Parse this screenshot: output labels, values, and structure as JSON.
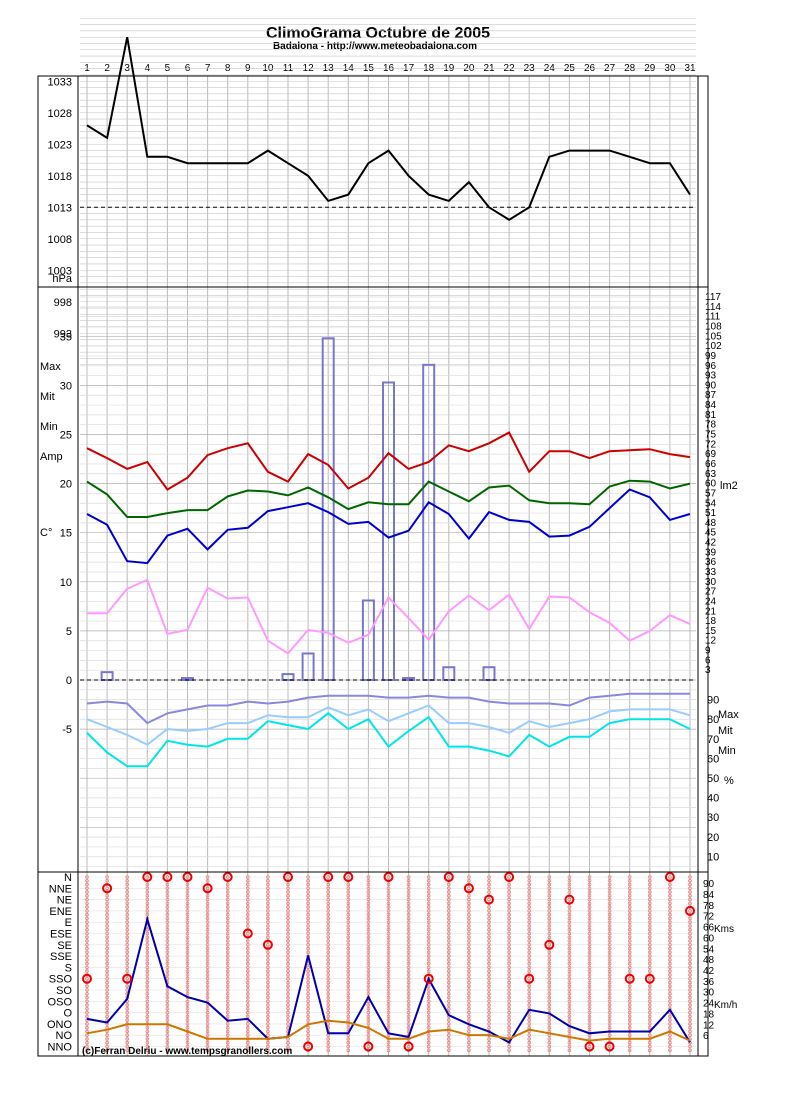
{
  "title": "ClimoGrama Octubre de 2005",
  "subtitle": "Badalona - http://www.meteobadalona.com",
  "credit": "(c)Ferran Delriu - www.tempsgranollers.com",
  "days": [
    1,
    2,
    3,
    4,
    5,
    6,
    7,
    8,
    9,
    10,
    11,
    12,
    13,
    14,
    15,
    16,
    17,
    18,
    19,
    20,
    21,
    22,
    23,
    24,
    25,
    26,
    27,
    28,
    29,
    30,
    31
  ],
  "chart_data": [
    {
      "type": "line",
      "panel": "pressure",
      "ylabel": "hPa",
      "ylim": [
        988,
        1043
      ],
      "yticks": [
        993,
        998,
        1003,
        1008,
        1013,
        1018,
        1023,
        1028,
        1033
      ],
      "reference": 1013,
      "series": [
        {
          "name": "",
          "color": "#000000",
          "values": [
            1026,
            1024,
            1040,
            1021,
            1021,
            1020,
            1020,
            1020,
            1020,
            1022,
            1020,
            1018,
            1014,
            1015,
            1020,
            1022,
            1018,
            1015,
            1014,
            1017,
            1013,
            1011,
            1013,
            1021,
            1022,
            1022,
            1022,
            1021,
            1020,
            1020,
            1015
          ]
        }
      ]
    },
    {
      "type": "line",
      "panel": "temperature",
      "ylabel": "C°",
      "ylim": [
        -10,
        40
      ],
      "yticks": [
        -5,
        0,
        5,
        10,
        15,
        20,
        25,
        30,
        35
      ],
      "y2label": "lm2",
      "y2ticks": [
        3,
        6,
        9,
        12,
        15,
        18,
        21,
        24,
        27,
        30,
        33,
        36,
        39,
        42,
        45,
        48,
        51,
        54,
        57,
        60,
        63,
        66,
        69,
        72,
        75,
        78,
        81,
        84,
        87,
        90,
        93,
        96,
        99,
        102,
        105,
        108,
        111,
        114,
        117
      ],
      "legend": [
        "Max",
        "Mit",
        "Min",
        "Amp"
      ],
      "series": [
        {
          "name": "Max",
          "color": "#cc0000",
          "values": [
            23.6,
            22.6,
            21.5,
            22.2,
            19.4,
            20.6,
            22.9,
            23.6,
            24.1,
            21.2,
            20.2,
            23.0,
            21.9,
            19.5,
            20.6,
            23.1,
            21.5,
            22.2,
            23.9,
            23.3,
            24.1,
            25.2,
            21.2,
            23.3,
            23.3,
            22.6,
            23.3,
            23.4,
            23.5,
            23.0,
            22.7
          ]
        },
        {
          "name": "Mit",
          "color": "#006600",
          "values": [
            20.2,
            18.9,
            16.6,
            16.6,
            17.0,
            17.3,
            17.3,
            18.7,
            19.3,
            19.2,
            18.8,
            19.6,
            18.6,
            17.4,
            18.1,
            17.9,
            17.9,
            20.2,
            19.2,
            18.2,
            19.6,
            19.8,
            18.3,
            18.0,
            18.0,
            17.9,
            19.7,
            20.3,
            20.2,
            19.5,
            20.0
          ]
        },
        {
          "name": "Min",
          "color": "#0000cc",
          "values": [
            16.9,
            15.8,
            12.1,
            11.9,
            14.7,
            15.4,
            13.3,
            15.3,
            15.5,
            17.2,
            17.6,
            18.0,
            17.1,
            15.9,
            16.1,
            14.5,
            15.2,
            18.1,
            16.9,
            14.4,
            17.1,
            16.3,
            16.1,
            14.6,
            14.7,
            15.6,
            17.5,
            19.4,
            18.6,
            16.3,
            16.9
          ]
        },
        {
          "name": "Amp",
          "color": "#ff99ff",
          "values": [
            6.8,
            6.8,
            9.3,
            10.2,
            4.7,
            5.1,
            9.4,
            8.3,
            8.4,
            4.0,
            2.7,
            5.1,
            4.8,
            3.8,
            4.6,
            8.4,
            6.3,
            4.1,
            7.0,
            8.6,
            7.1,
            8.7,
            5.2,
            8.5,
            8.4,
            6.9,
            5.8,
            4.0,
            5.0,
            6.6,
            5.7
          ]
        }
      ],
      "bars": {
        "name": "lm2",
        "color": "#7777cc",
        "values": [
          0,
          2.4,
          0,
          0,
          0,
          0.6,
          0,
          0,
          0,
          0,
          1.8,
          8.1,
          104.4,
          0,
          24.3,
          90.9,
          0.6,
          96.3,
          3.9,
          0,
          3.9,
          0,
          0,
          0,
          0,
          0,
          0,
          0,
          0,
          0,
          0
        ]
      }
    },
    {
      "type": "line",
      "panel": "humidity",
      "ylabel": "%",
      "ylim": [
        0,
        100
      ],
      "yticks": [
        10,
        20,
        30,
        40,
        50,
        60,
        70,
        80,
        90
      ],
      "legend": [
        "Max",
        "Mit",
        "Min"
      ],
      "series": [
        {
          "name": "Max",
          "color": "#8888dd",
          "values": [
            88,
            89,
            88,
            78,
            83,
            85,
            87,
            87,
            89,
            88,
            89,
            91,
            92,
            92,
            92,
            91,
            91,
            92,
            91,
            91,
            89,
            88,
            88,
            88,
            87,
            91,
            92,
            93,
            93,
            93,
            93
          ]
        },
        {
          "name": "Mit",
          "color": "#99ccff",
          "values": [
            80,
            76,
            72,
            67,
            75,
            74,
            75,
            78,
            78,
            82,
            81,
            81,
            86,
            82,
            85,
            79,
            83,
            87,
            78,
            78,
            76,
            73,
            79,
            76,
            78,
            80,
            84,
            85,
            85,
            85,
            82
          ]
        },
        {
          "name": "Min",
          "color": "#00e5e5",
          "values": [
            73,
            63,
            56,
            56,
            69,
            67,
            66,
            70,
            70,
            79,
            77,
            75,
            83,
            75,
            80,
            66,
            74,
            81,
            66,
            66,
            64,
            61,
            72,
            66,
            71,
            71,
            78,
            80,
            80,
            80,
            75
          ]
        }
      ]
    },
    {
      "type": "line",
      "panel": "wind",
      "directions": [
        "N",
        "NNE",
        "NE",
        "ENE",
        "E",
        "ESE",
        "SE",
        "SSE",
        "S",
        "SSO",
        "SO",
        "OSO",
        "O",
        "ONO",
        "NO",
        "NNO"
      ],
      "y2label": "Kms",
      "y2ticks": [
        6,
        12,
        18,
        24,
        30,
        36,
        42,
        48,
        54,
        60,
        66,
        72,
        78,
        84,
        90
      ],
      "y3label": "Km/h",
      "dominant_direction": [
        "SSO",
        "NNE",
        "SSO",
        "N",
        "N",
        "N",
        "NNE",
        "N",
        "ESE",
        "SE",
        "N",
        "NNO",
        "N",
        "N",
        "NNO",
        "N",
        "NNO",
        "SSO",
        "N",
        "NNE",
        "NE",
        "N",
        "SSO",
        "SE",
        "NE",
        "NNO",
        "NNO",
        "SSO",
        "SSO",
        "N",
        "ENE"
      ],
      "series": [
        {
          "name": "Kms",
          "color": "#0000aa",
          "values": [
            15,
            13,
            26,
            70,
            33,
            27,
            24,
            14,
            15,
            4,
            5,
            50,
            7,
            7,
            27,
            7,
            5,
            37,
            17,
            12,
            8,
            2,
            20,
            18,
            11,
            7,
            8,
            8,
            8,
            20,
            2
          ]
        },
        {
          "name": "Km/h",
          "color": "#cc7700",
          "values": [
            7,
            9,
            12,
            12,
            12,
            8,
            4,
            4,
            4,
            4,
            5,
            12,
            14,
            13,
            10,
            4,
            4,
            8,
            9,
            6,
            6,
            4,
            9,
            7,
            5,
            3,
            4,
            4,
            4,
            8,
            3
          ]
        }
      ]
    }
  ]
}
